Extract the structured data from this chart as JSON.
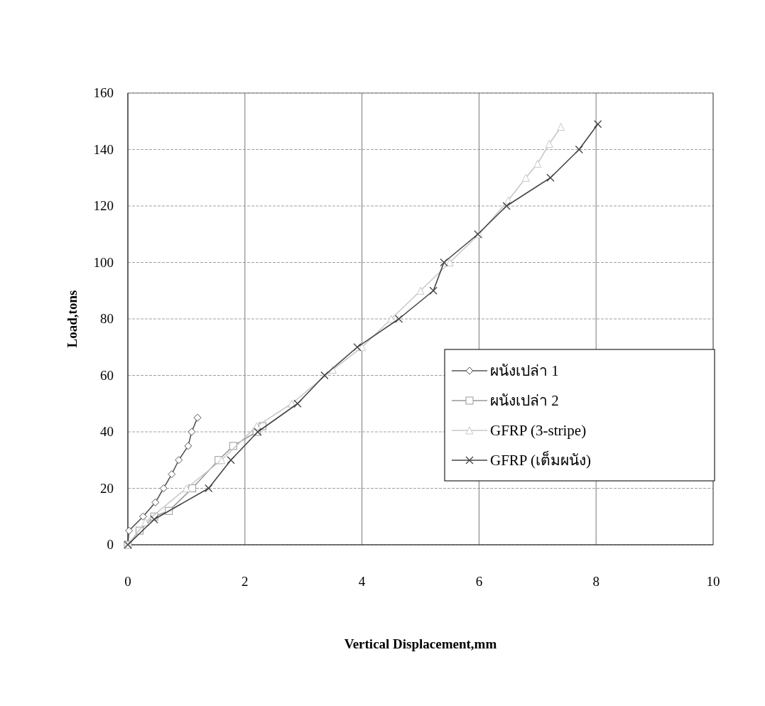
{
  "chart_data": {
    "type": "line",
    "xlabel": "Vertical Displacement,mm",
    "ylabel": "Load,tons",
    "xlim": [
      0,
      10
    ],
    "xticks": [
      0,
      2,
      4,
      6,
      8,
      10
    ],
    "ylim": [
      0,
      160
    ],
    "yticks": [
      0,
      20,
      40,
      60,
      80,
      100,
      120,
      140,
      160
    ],
    "grid": true,
    "legend": "right",
    "series": [
      {
        "name": "ผนังเปล่า 1",
        "color": "#555555",
        "marker": "diamond",
        "x": [
          0,
          0.02,
          0.26,
          0.47,
          0.61,
          0.75,
          0.87,
          1.03,
          1.09,
          1.19
        ],
        "values": [
          0,
          5,
          10,
          15,
          20,
          25,
          30,
          35,
          40,
          45
        ]
      },
      {
        "name": "ผนังเปล่า 2",
        "color": "#999999",
        "marker": "square",
        "x": [
          0,
          0.2,
          0.45,
          0.7,
          1.1,
          1.55,
          1.8,
          2.2,
          2.3
        ],
        "values": [
          0,
          5,
          10,
          12,
          20,
          30,
          35,
          40,
          42
        ]
      },
      {
        "name": "GFRP (3-stripe)",
        "color": "#c8c8c8",
        "marker": "triangle",
        "x": [
          0,
          0.3,
          1.0,
          1.6,
          2.2,
          2.8,
          3.5,
          4.0,
          4.5,
          5.0,
          5.5,
          6.0,
          6.5,
          6.8,
          7.0,
          7.2,
          7.4
        ],
        "values": [
          0,
          8,
          20,
          30,
          42,
          50,
          62,
          70,
          80,
          90,
          100,
          110,
          122,
          130,
          135,
          142,
          148
        ]
      },
      {
        "name": "GFRP (เต็มผนัง)",
        "color": "#444444",
        "marker": "cross",
        "x": [
          0,
          0.45,
          1.38,
          1.76,
          2.22,
          2.9,
          3.36,
          3.92,
          4.63,
          5.22,
          5.4,
          5.98,
          6.47,
          7.22,
          7.71,
          8.03
        ],
        "values": [
          0,
          9,
          20,
          30,
          40,
          50,
          60,
          70,
          80,
          90,
          100,
          110,
          120,
          130,
          140,
          149
        ]
      }
    ]
  }
}
